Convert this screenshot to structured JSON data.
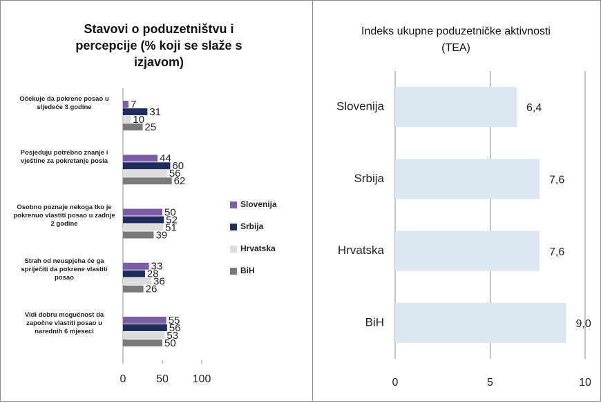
{
  "chart_data": [
    {
      "type": "hbar_grouped",
      "title": "Stavovi o poduzetništvu i percepcije (% koji se slaže s izjavom)",
      "categories": [
        "Očekuje da pokrene posao u sljedeće 3 godine",
        "Posjeduju potrebno znanje i vještine za pokretanje posla",
        "Osobno poznaje nekoga tko je pokrenuo vlastiti posao u zadnje 2 godine",
        "Strah od neuspjeha će ga spriječiti da pokrene vlastiti posao",
        "Vidi dobru mogućnost da započne vlastiti posao u narednih 6 mjeseci"
      ],
      "series": [
        {
          "name": "Slovenija",
          "color": "#7b5ea7",
          "values": [
            7,
            44,
            50,
            33,
            55
          ]
        },
        {
          "name": "Srbija",
          "color": "#1f2d5c",
          "values": [
            31,
            60,
            52,
            28,
            56
          ]
        },
        {
          "name": "Hrvatska",
          "color": "#dcdcdc",
          "values": [
            10,
            56,
            51,
            36,
            53
          ]
        },
        {
          "name": "BiH",
          "color": "#7a7a7a",
          "values": [
            25,
            62,
            39,
            26,
            50
          ]
        }
      ],
      "xlim": [
        0,
        100
      ],
      "xticks": [
        0,
        50,
        100
      ],
      "legend": "right"
    },
    {
      "type": "hbar",
      "title": "Indeks ukupne poduzetničke aktivnosti (TEA)",
      "categories": [
        "Slovenija",
        "Srbija",
        "Hrvatska",
        "BiH"
      ],
      "values": [
        6.4,
        7.6,
        7.6,
        9.0
      ],
      "value_labels": [
        "6,4",
        "7,6",
        "7,6",
        "9,0"
      ],
      "color": "#dce6f2",
      "xlim": [
        0,
        10
      ],
      "xticks": [
        0,
        5,
        10
      ],
      "grid": true
    }
  ]
}
